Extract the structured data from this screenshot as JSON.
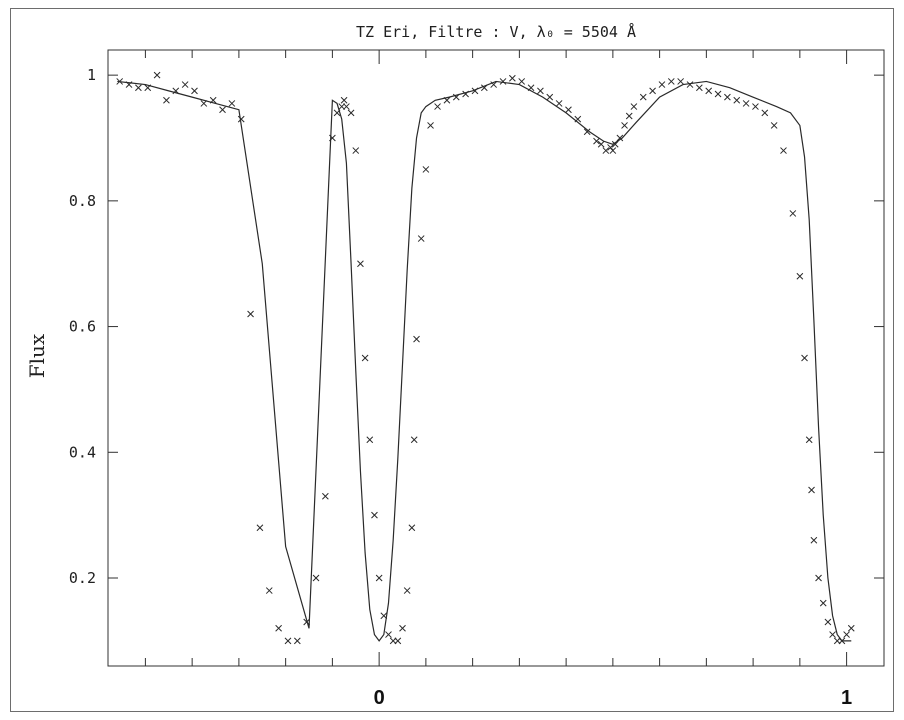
{
  "chart_data": {
    "type": "scatter",
    "title": "TZ Eri, Filtre : V, λ₀ = 5504 Å",
    "xlabel": "",
    "ylabel": "Flux",
    "x_ticks": [
      0,
      1
    ],
    "y_ticks": [
      0.2,
      0.4,
      0.6,
      0.8,
      1.0
    ],
    "xlim": [
      -0.58,
      1.08
    ],
    "ylim": [
      0.06,
      1.04
    ],
    "grid": false,
    "series": [
      {
        "style": "markers",
        "x": [
          -0.555,
          -0.535,
          -0.515,
          -0.495,
          -0.475,
          -0.455,
          -0.435,
          -0.415,
          -0.395,
          -0.375,
          -0.355,
          -0.335,
          -0.315,
          -0.295,
          -0.275,
          -0.255,
          -0.235,
          -0.215,
          -0.195,
          -0.175,
          -0.155,
          -0.135,
          -0.115,
          -0.1,
          -0.09,
          -0.08,
          -0.075,
          -0.07,
          -0.06,
          -0.05,
          -0.04,
          -0.03,
          -0.02,
          -0.01,
          0.0,
          0.01,
          0.02,
          0.03,
          0.04,
          0.05,
          0.06,
          0.07,
          0.075,
          0.08,
          0.09,
          0.1,
          0.11,
          0.125,
          0.145,
          0.165,
          0.185,
          0.205,
          0.225,
          0.245,
          0.265,
          0.285,
          0.305,
          0.325,
          0.345,
          0.365,
          0.385,
          0.405,
          0.425,
          0.445,
          0.465,
          0.475,
          0.485,
          0.495,
          0.5,
          0.505,
          0.515,
          0.525,
          0.535,
          0.545,
          0.565,
          0.585,
          0.605,
          0.625,
          0.645,
          0.665,
          0.685,
          0.705,
          0.725,
          0.745,
          0.765,
          0.785,
          0.805,
          0.825,
          0.845,
          0.865,
          0.885,
          0.9,
          0.91,
          0.92,
          0.925,
          0.93,
          0.94,
          0.95,
          0.96,
          0.97,
          0.98,
          0.99,
          1.0,
          1.01
        ],
        "y": [
          0.99,
          0.985,
          0.98,
          0.98,
          1.0,
          0.96,
          0.975,
          0.985,
          0.975,
          0.955,
          0.96,
          0.945,
          0.955,
          0.93,
          0.62,
          0.28,
          0.18,
          0.12,
          0.1,
          0.1,
          0.13,
          0.2,
          0.33,
          0.9,
          0.94,
          0.95,
          0.96,
          0.95,
          0.94,
          0.88,
          0.7,
          0.55,
          0.42,
          0.3,
          0.2,
          0.14,
          0.11,
          0.1,
          0.1,
          0.12,
          0.18,
          0.28,
          0.42,
          0.58,
          0.74,
          0.85,
          0.92,
          0.95,
          0.96,
          0.965,
          0.97,
          0.975,
          0.98,
          0.985,
          0.99,
          0.995,
          0.99,
          0.98,
          0.975,
          0.965,
          0.955,
          0.945,
          0.93,
          0.91,
          0.895,
          0.89,
          0.88,
          0.885,
          0.88,
          0.89,
          0.9,
          0.92,
          0.935,
          0.95,
          0.965,
          0.975,
          0.985,
          0.99,
          0.99,
          0.985,
          0.98,
          0.975,
          0.97,
          0.965,
          0.96,
          0.955,
          0.95,
          0.94,
          0.92,
          0.88,
          0.78,
          0.68,
          0.55,
          0.42,
          0.34,
          0.26,
          0.2,
          0.16,
          0.13,
          0.11,
          0.1,
          0.1,
          0.11,
          0.12
        ]
      },
      {
        "style": "line",
        "x": [
          -0.56,
          -0.5,
          -0.45,
          -0.4,
          -0.35,
          -0.3,
          -0.25,
          -0.2,
          -0.15,
          -0.1,
          -0.09,
          -0.08,
          -0.07,
          -0.06,
          -0.05,
          -0.04,
          -0.03,
          -0.02,
          -0.01,
          0.0,
          0.01,
          0.02,
          0.03,
          0.04,
          0.05,
          0.06,
          0.07,
          0.08,
          0.09,
          0.1,
          0.12,
          0.15,
          0.2,
          0.25,
          0.3,
          0.35,
          0.4,
          0.45,
          0.48,
          0.5,
          0.52,
          0.55,
          0.6,
          0.65,
          0.7,
          0.75,
          0.8,
          0.85,
          0.88,
          0.9,
          0.91,
          0.92,
          0.93,
          0.94,
          0.95,
          0.96,
          0.97,
          0.98,
          0.99,
          1.0,
          1.01
        ],
        "y": [
          0.99,
          0.985,
          0.975,
          0.965,
          0.955,
          0.945,
          0.7,
          0.25,
          0.12,
          0.96,
          0.955,
          0.93,
          0.86,
          0.7,
          0.53,
          0.37,
          0.24,
          0.15,
          0.11,
          0.1,
          0.11,
          0.16,
          0.26,
          0.39,
          0.54,
          0.69,
          0.82,
          0.9,
          0.94,
          0.95,
          0.96,
          0.965,
          0.975,
          0.99,
          0.985,
          0.965,
          0.94,
          0.91,
          0.895,
          0.89,
          0.9,
          0.925,
          0.965,
          0.985,
          0.99,
          0.98,
          0.965,
          0.95,
          0.94,
          0.92,
          0.87,
          0.77,
          0.61,
          0.44,
          0.3,
          0.2,
          0.14,
          0.11,
          0.1,
          0.1,
          0.1
        ]
      }
    ]
  }
}
